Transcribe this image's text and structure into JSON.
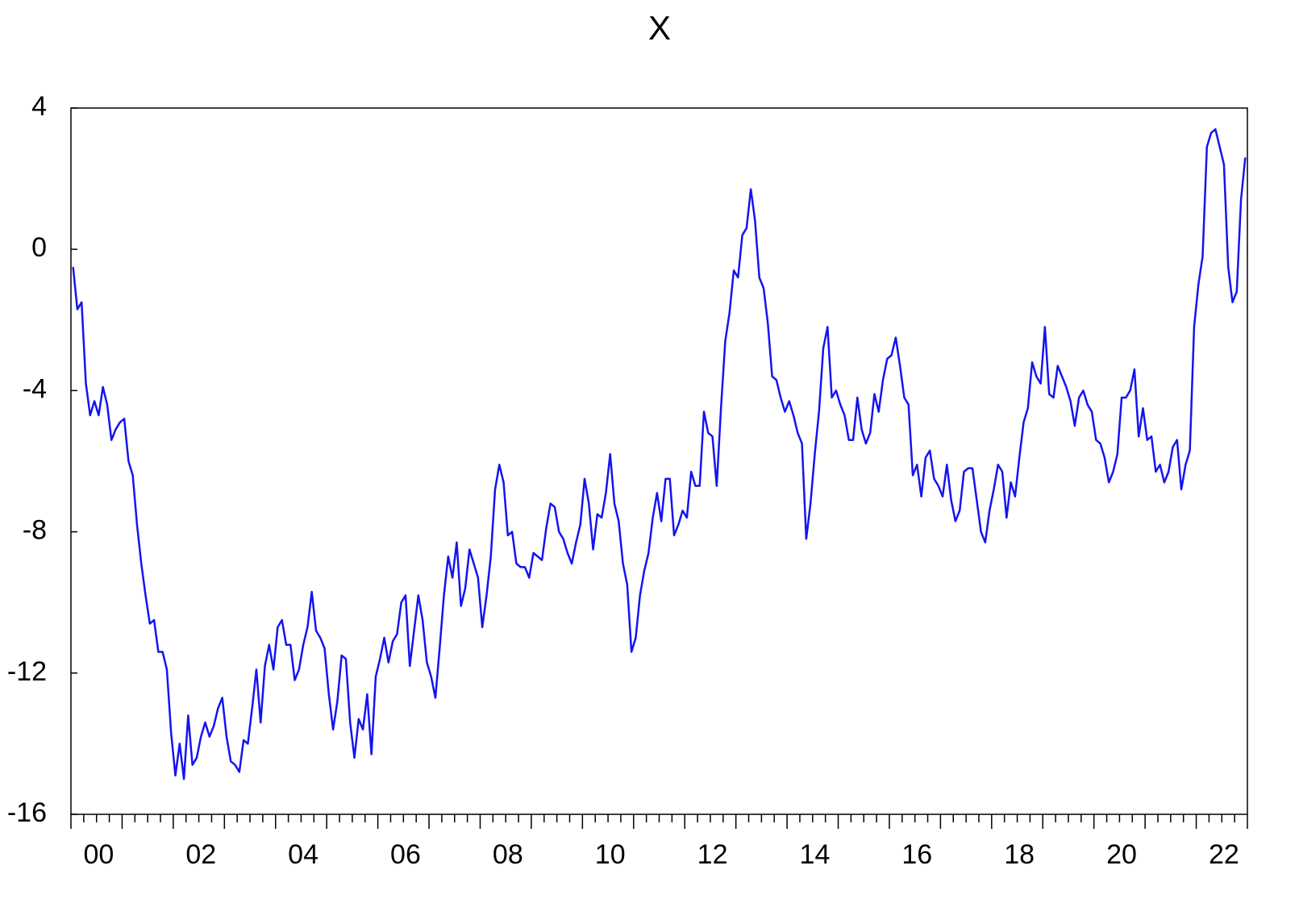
{
  "chart_data": {
    "type": "line",
    "title": "X",
    "categories": [
      null,
      null,
      null,
      null,
      null,
      null,
      "00",
      null,
      null,
      null,
      null,
      null,
      null,
      null,
      null,
      null,
      null,
      null,
      null,
      null,
      null,
      null,
      null,
      null,
      null,
      null,
      null,
      null,
      null,
      null,
      "02",
      null,
      null,
      null,
      null,
      null,
      null,
      null,
      null,
      null,
      null,
      null,
      null,
      null,
      null,
      null,
      null,
      null,
      null,
      null,
      null,
      null,
      null,
      null,
      "04",
      null,
      null,
      null,
      null,
      null,
      null,
      null,
      null,
      null,
      null,
      null,
      null,
      null,
      null,
      null,
      null,
      null,
      null,
      null,
      null,
      null,
      null,
      null,
      "06",
      null,
      null,
      null,
      null,
      null,
      null,
      null,
      null,
      null,
      null,
      null,
      null,
      null,
      null,
      null,
      null,
      null,
      null,
      null,
      null,
      null,
      null,
      null,
      "08",
      null,
      null,
      null,
      null,
      null,
      null,
      null,
      null,
      null,
      null,
      null,
      null,
      null,
      null,
      null,
      null,
      null,
      null,
      null,
      null,
      null,
      null,
      null,
      "10",
      null,
      null,
      null,
      null,
      null,
      null,
      null,
      null,
      null,
      null,
      null,
      null,
      null,
      null,
      null,
      null,
      null,
      null,
      null,
      null,
      null,
      null,
      null,
      "12",
      null,
      null,
      null,
      null,
      null,
      null,
      null,
      null,
      null,
      null,
      null,
      null,
      null,
      null,
      null,
      null,
      null,
      null,
      null,
      null,
      null,
      null,
      null,
      "14",
      null,
      null,
      null,
      null,
      null,
      null,
      null,
      null,
      null,
      null,
      null,
      null,
      null,
      null,
      null,
      null,
      null,
      null,
      null,
      null,
      null,
      null,
      null,
      "16",
      null,
      null,
      null,
      null,
      null,
      null,
      null,
      null,
      null,
      null,
      null,
      null,
      null,
      null,
      null,
      null,
      null,
      null,
      null,
      null,
      null,
      null,
      null,
      "18",
      null,
      null,
      null,
      null,
      null,
      null,
      null,
      null,
      null,
      null,
      null,
      null,
      null,
      null,
      null,
      null,
      null,
      null,
      null,
      null,
      null,
      null,
      null,
      "20",
      null,
      null,
      null,
      null,
      null,
      null,
      null,
      null,
      null,
      null,
      null,
      null,
      null,
      null,
      null,
      null,
      null,
      null,
      null,
      null,
      null,
      null,
      null,
      "22",
      null,
      null,
      null,
      null,
      null
    ],
    "values": [
      -0.5,
      -1.7,
      -1.5,
      -3.8,
      -4.7,
      -4.3,
      -4.7,
      -3.9,
      -4.4,
      -5.4,
      -5.1,
      -4.9,
      -4.8,
      -6.0,
      -6.4,
      -7.8,
      -8.9,
      -9.8,
      -10.6,
      -10.5,
      -11.4,
      -11.4,
      -11.9,
      -13.7,
      -14.9,
      -14.0,
      -15.0,
      -13.2,
      -14.6,
      -14.4,
      -13.8,
      -13.4,
      -13.8,
      -13.5,
      -13.0,
      -12.7,
      -13.8,
      -14.5,
      -14.6,
      -14.8,
      -13.9,
      -14.0,
      -13.0,
      -11.9,
      -13.4,
      -11.8,
      -11.2,
      -11.9,
      -10.7,
      -10.5,
      -11.2,
      -11.2,
      -12.2,
      -11.9,
      -11.2,
      -10.7,
      -9.7,
      -10.8,
      -11.0,
      -11.3,
      -12.6,
      -13.6,
      -12.8,
      -11.5,
      -11.6,
      -13.4,
      -14.4,
      -13.3,
      -13.6,
      -12.6,
      -14.3,
      -12.1,
      -11.6,
      -11.0,
      -11.7,
      -11.1,
      -10.9,
      -10.0,
      -9.8,
      -11.8,
      -10.8,
      -9.8,
      -10.5,
      -11.7,
      -12.1,
      -12.7,
      -11.3,
      -9.8,
      -8.7,
      -9.3,
      -8.3,
      -10.1,
      -9.6,
      -8.5,
      -8.9,
      -9.3,
      -10.7,
      -9.8,
      -8.7,
      -6.8,
      -6.1,
      -6.6,
      -8.1,
      -8.0,
      -8.9,
      -9.0,
      -9.0,
      -9.3,
      -8.6,
      -8.7,
      -8.8,
      -7.9,
      -7.2,
      -7.3,
      -8.0,
      -8.2,
      -8.6,
      -8.9,
      -8.3,
      -7.8,
      -6.5,
      -7.2,
      -8.5,
      -7.5,
      -7.6,
      -6.9,
      -5.8,
      -7.2,
      -7.7,
      -8.9,
      -9.5,
      -11.4,
      -11.0,
      -9.8,
      -9.1,
      -8.6,
      -7.6,
      -6.9,
      -7.7,
      -6.5,
      -6.5,
      -8.1,
      -7.8,
      -7.4,
      -7.6,
      -6.3,
      -6.7,
      -6.7,
      -4.6,
      -5.2,
      -5.3,
      -6.7,
      -4.5,
      -2.6,
      -1.8,
      -0.6,
      -0.8,
      0.4,
      0.6,
      1.7,
      0.8,
      -0.8,
      -1.1,
      -2.1,
      -3.6,
      -3.7,
      -4.2,
      -4.6,
      -4.3,
      -4.7,
      -5.2,
      -5.5,
      -8.2,
      -7.2,
      -5.8,
      -4.6,
      -2.8,
      -2.2,
      -4.2,
      -4.0,
      -4.4,
      -4.7,
      -5.4,
      -5.4,
      -4.2,
      -5.1,
      -5.5,
      -5.2,
      -4.1,
      -4.6,
      -3.7,
      -3.1,
      -3.0,
      -2.5,
      -3.3,
      -4.2,
      -4.4,
      -6.4,
      -6.1,
      -7.0,
      -5.9,
      -5.7,
      -6.5,
      -6.7,
      -7.0,
      -6.1,
      -7.1,
      -7.7,
      -7.4,
      -6.3,
      -6.2,
      -6.2,
      -7.1,
      -8.0,
      -8.3,
      -7.4,
      -6.8,
      -6.1,
      -6.3,
      -7.6,
      -6.6,
      -7.0,
      -5.9,
      -4.9,
      -4.5,
      -3.2,
      -3.6,
      -3.8,
      -2.2,
      -4.1,
      -4.2,
      -3.3,
      -3.6,
      -3.9,
      -4.3,
      -5.0,
      -4.2,
      -4.0,
      -4.4,
      -4.6,
      -5.4,
      -5.5,
      -5.9,
      -6.6,
      -6.3,
      -5.8,
      -4.2,
      -4.2,
      -4.0,
      -3.4,
      -5.3,
      -4.5,
      -5.4,
      -5.3,
      -6.3,
      -6.1,
      -6.6,
      -6.3,
      -5.6,
      -5.4,
      -6.8,
      -6.1,
      -5.7,
      -2.2,
      -1.0,
      -0.2,
      2.9,
      3.3,
      3.4,
      2.9,
      2.4,
      -0.5,
      -1.5,
      -1.2,
      1.4,
      2.6
    ],
    "color": "#1414f0",
    "ylim": [
      -16,
      4
    ],
    "yticks": [
      -16,
      -12,
      -8,
      -4,
      0,
      4
    ],
    "grid": false
  }
}
